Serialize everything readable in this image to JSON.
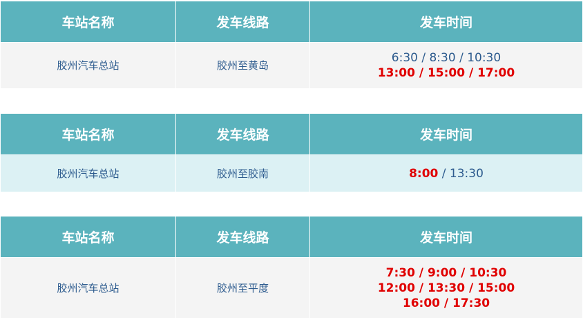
{
  "headers": [
    "车站名称",
    "发车线路",
    "发车时间"
  ],
  "colors": {
    "header_bg": "#5bb3bd",
    "text": "#2d5b8e",
    "highlight": "#e00000",
    "row_gray": "#f4f4f4",
    "row_cyan": "#dcf1f4"
  },
  "tables": [
    {
      "station": "胶州汽车总站",
      "route": "胶州至黄岛",
      "times": [
        [
          {
            "text": "6:30 / 8:30 / 10:30",
            "style": "norm"
          }
        ],
        [
          {
            "text": "13:00 / 15:00 / 17:00",
            "style": "red"
          }
        ]
      ]
    },
    {
      "station": "胶州汽车总站",
      "route": "胶州至胶南",
      "times": [
        [
          {
            "text": "8:00",
            "style": "red"
          },
          {
            "text": " / 13:30",
            "style": "norm"
          }
        ]
      ]
    },
    {
      "station": "胶州汽车总站",
      "route": "胶州至平度",
      "times": [
        [
          {
            "text": "7:30 / 9:00 / 10:30",
            "style": "red"
          }
        ],
        [
          {
            "text": "12:00 / 13:30 / 15:00",
            "style": "red"
          }
        ],
        [
          {
            "text": "16:00 / 17:30",
            "style": "red"
          }
        ]
      ]
    }
  ]
}
